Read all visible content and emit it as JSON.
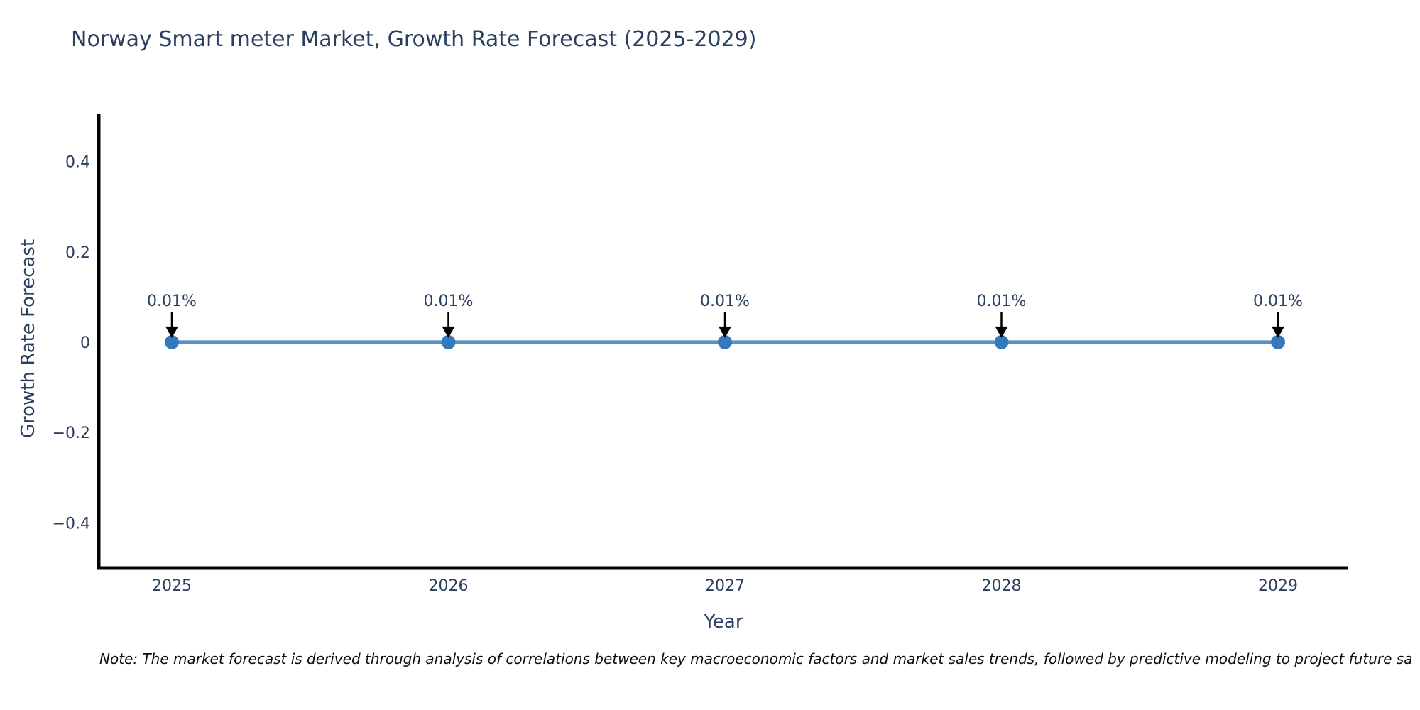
{
  "note": "Note: The market forecast is derived through analysis of correlations between key macroeconomic factors and market sales trends, followed by predictive modeling to project future sa",
  "colors": {
    "background": "#ffffff",
    "text": "#2a3f5f",
    "axis_line": "#000000",
    "series_line": "#5b90c4",
    "marker": "#3478bd",
    "arrow": "#000000",
    "note_text": "#0d0d0d"
  },
  "chart_data": {
    "type": "line",
    "title": "Norway Smart meter Market, Growth Rate Forecast (2025-2029)",
    "xlabel": "Year",
    "ylabel": "Growth Rate Forecast",
    "categories": [
      "2025",
      "2026",
      "2027",
      "2028",
      "2029"
    ],
    "series": [
      {
        "name": "Growth Rate Forecast",
        "values_percent": [
          0.01,
          0.01,
          0.01,
          0.01,
          0.01
        ],
        "point_labels": [
          "0.01%",
          "0.01%",
          "0.01%",
          "0.01%",
          "0.01%"
        ]
      }
    ],
    "yticks": [
      {
        "value": 0.4,
        "label": "0.4"
      },
      {
        "value": 0.2,
        "label": "0.2"
      },
      {
        "value": 0,
        "label": "0"
      },
      {
        "value": -0.2,
        "label": "−0.2"
      },
      {
        "value": -0.4,
        "label": "−0.4"
      }
    ],
    "ylim": [
      -0.5,
      0.506
    ],
    "grid": false,
    "legend_position": "none",
    "annotation_style": "down-arrow"
  }
}
